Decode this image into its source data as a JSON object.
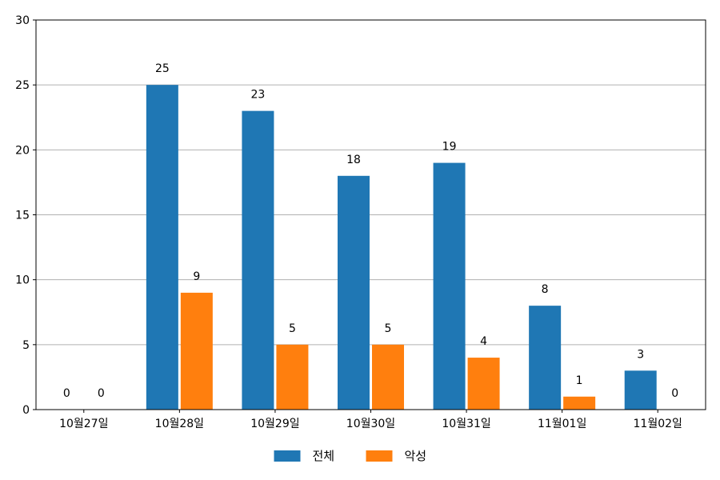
{
  "chart_data": {
    "type": "bar",
    "categories": [
      "10월27일",
      "10월28일",
      "10월29일",
      "10월30일",
      "10월31일",
      "11월01일",
      "11월02일"
    ],
    "series": [
      {
        "name": "전체",
        "values": [
          0,
          25,
          23,
          18,
          19,
          8,
          3
        ],
        "color": "#1f77b4"
      },
      {
        "name": "악성",
        "values": [
          0,
          9,
          5,
          5,
          4,
          1,
          0
        ],
        "color": "#ff7f0e"
      }
    ],
    "ylim": [
      0,
      30
    ],
    "yticks": [
      0,
      5,
      10,
      15,
      20,
      25,
      30
    ],
    "grid": "horizontal",
    "legend_position": "bottom-center",
    "data_labels": true
  }
}
